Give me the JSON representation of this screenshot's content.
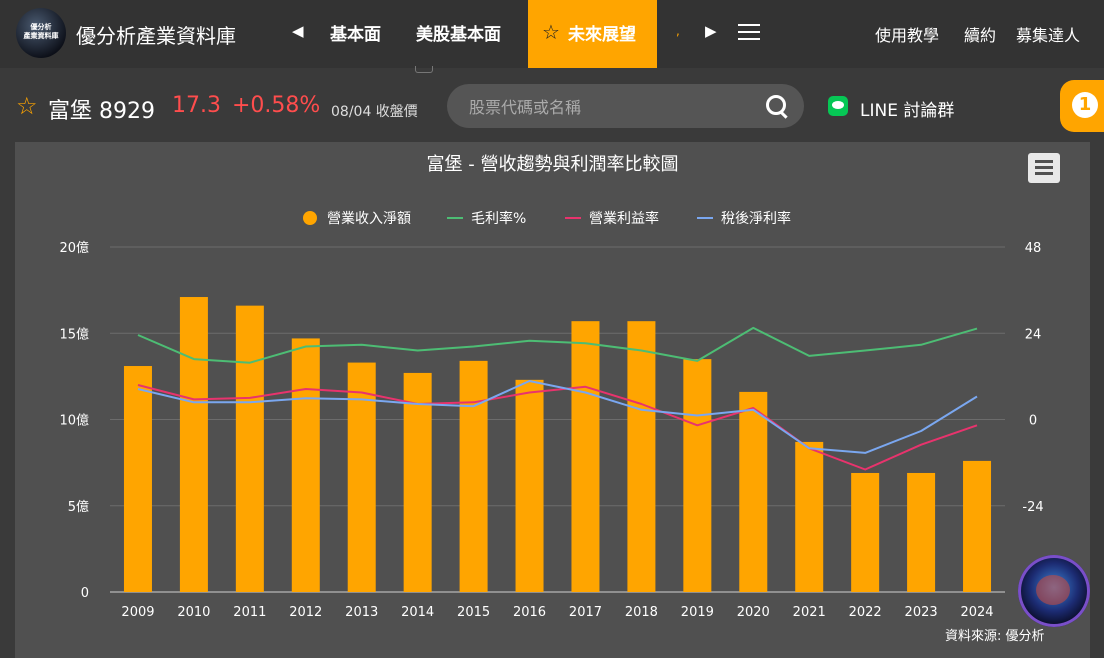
{
  "nav": {
    "brand": "優分析產業資料庫",
    "logo_text": "優分析\n產業資料庫",
    "items": [
      "基本面",
      "美股基本面"
    ],
    "active_item": "未來展望",
    "right_links": [
      "使用教學",
      "續約",
      "募集達人"
    ]
  },
  "quote": {
    "name": "富堡 8929",
    "price": "17.3",
    "change": "+0.58%",
    "date_label": "08/04 收盤價"
  },
  "search": {
    "placeholder": "股票代碼或名稱"
  },
  "line_group": "LINE 討論群",
  "badge": "1",
  "chart_data": {
    "type": "bar",
    "title": "富堡 - 營收趨勢與利潤率比較圖",
    "categories": [
      "2009",
      "2010",
      "2011",
      "2012",
      "2013",
      "2014",
      "2015",
      "2016",
      "2017",
      "2018",
      "2019",
      "2020",
      "2021",
      "2022",
      "2023",
      "2024"
    ],
    "left_axis": {
      "ticks": [
        "0",
        "5億",
        "10億",
        "15億",
        "20億"
      ],
      "ylim": [
        0,
        20
      ]
    },
    "right_axis": {
      "ticks": [
        "-24",
        "0",
        "24",
        "48"
      ],
      "ylim": [
        -48,
        48
      ]
    },
    "series": [
      {
        "name": "營業收入淨額",
        "type": "bar",
        "axis": "left",
        "color": "#ffa500",
        "values": [
          13.1,
          17.1,
          16.6,
          14.7,
          13.3,
          12.7,
          13.4,
          12.3,
          15.7,
          15.7,
          13.5,
          11.6,
          8.7,
          6.9,
          6.9,
          7.6
        ]
      },
      {
        "name": "毛利率%",
        "type": "line",
        "axis": "right",
        "color": "#4dbd74",
        "values": [
          23.5,
          16.8,
          15.8,
          20.3,
          20.8,
          19.2,
          20.3,
          21.9,
          21.2,
          19.2,
          16.3,
          25.5,
          17.7,
          19.2,
          20.8,
          25.3
        ]
      },
      {
        "name": "營業利益率",
        "type": "line",
        "axis": "right",
        "color": "#e8336d",
        "values": [
          9.6,
          5.6,
          6.0,
          8.5,
          7.5,
          4.3,
          4.8,
          7.5,
          9.1,
          4.3,
          -1.6,
          3.2,
          -8.0,
          -13.9,
          -7.0,
          -1.6
        ]
      },
      {
        "name": "稅後淨利率",
        "type": "line",
        "axis": "right",
        "color": "#7aa7f0",
        "values": [
          8.5,
          4.8,
          4.8,
          5.9,
          5.6,
          4.3,
          3.7,
          10.7,
          7.5,
          2.7,
          1.1,
          2.7,
          -8.0,
          -9.3,
          -3.2,
          6.4
        ]
      }
    ],
    "legend_position": "top-center",
    "grid": true,
    "source": "資料來源: 優分析"
  }
}
